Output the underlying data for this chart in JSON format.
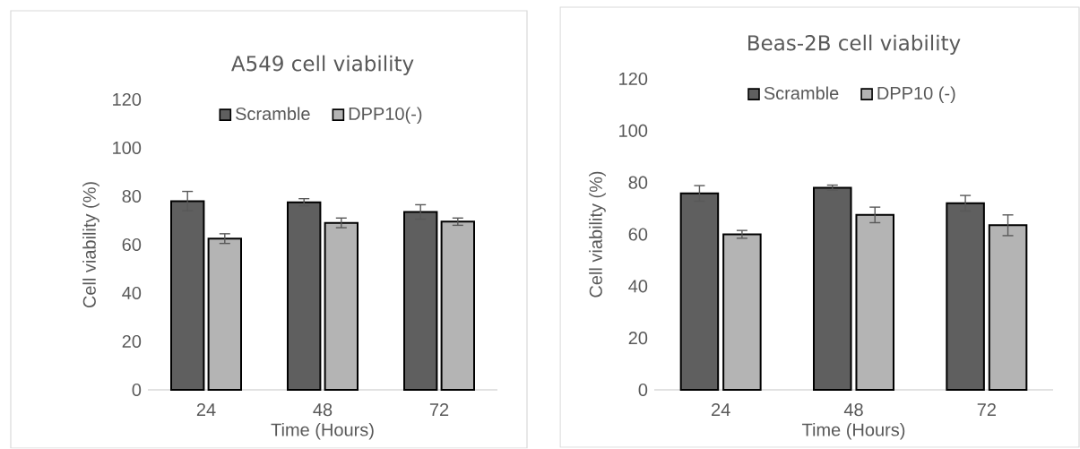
{
  "chart_data": [
    {
      "type": "bar",
      "title": "A549 cell viability",
      "xlabel": "Time (Hours)",
      "ylabel": "Cell viability (%)",
      "categories": [
        "24",
        "48",
        "72"
      ],
      "ylim": [
        0,
        120
      ],
      "yticks": [
        0,
        20,
        40,
        60,
        80,
        100,
        120
      ],
      "legend": "top",
      "series": [
        {
          "name": "Scramble",
          "color": "#5f5f5f",
          "values": [
            78,
            77.5,
            73.5
          ],
          "errors": [
            4,
            1.5,
            3
          ]
        },
        {
          "name": "DPP10(-)",
          "color": "#b4b4b4",
          "values": [
            62.5,
            69,
            69.5
          ],
          "errors": [
            2,
            2,
            1.5
          ]
        }
      ]
    },
    {
      "type": "bar",
      "title": "Beas-2B cell viability",
      "xlabel": "Time (Hours)",
      "ylabel": "Cell viability (%)",
      "categories": [
        "24",
        "48",
        "72"
      ],
      "ylim": [
        0,
        120
      ],
      "yticks": [
        0,
        20,
        40,
        60,
        80,
        100,
        120
      ],
      "legend": "top",
      "series": [
        {
          "name": "Scramble",
          "color": "#5f5f5f",
          "values": [
            75.8,
            78,
            72
          ],
          "errors": [
            3,
            1,
            3
          ]
        },
        {
          "name": "DPP10 (-)",
          "color": "#b4b4b4",
          "values": [
            60,
            67.5,
            63.5
          ],
          "errors": [
            1.5,
            3,
            4
          ]
        }
      ]
    }
  ]
}
